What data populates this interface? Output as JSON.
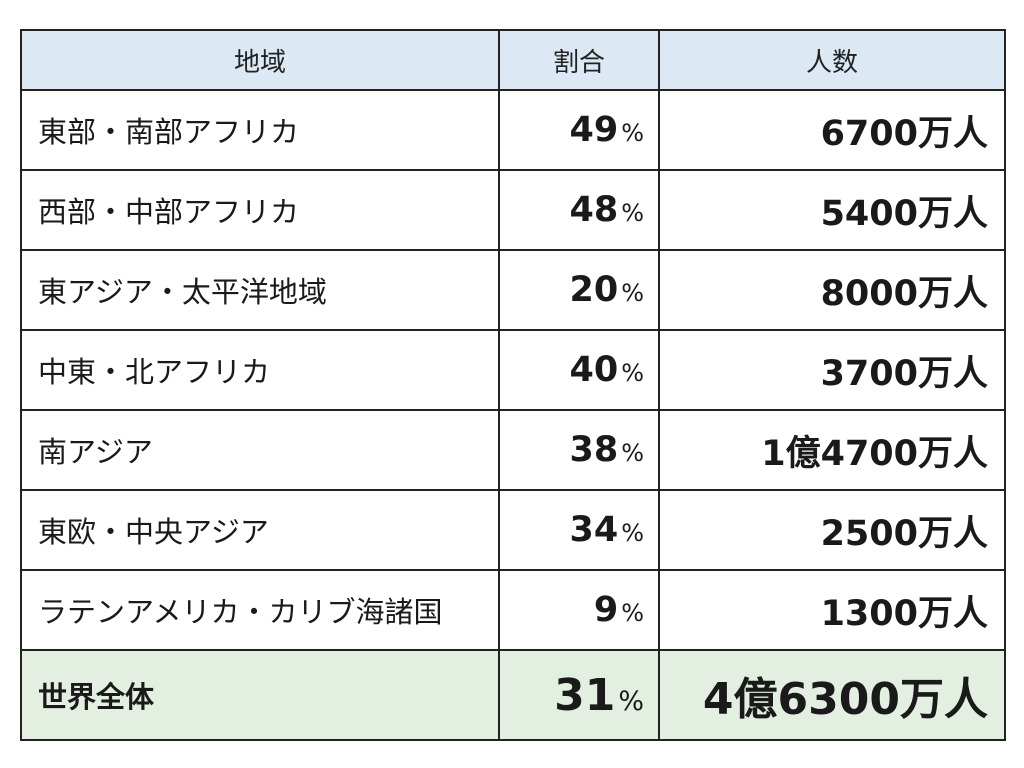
{
  "headers": [
    "地域",
    "割合",
    "人数"
  ],
  "pct_unit": "%",
  "rows": [
    {
      "region": "東部・南部アフリカ",
      "pct": "49",
      "count": "6700万人"
    },
    {
      "region": "西部・中部アフリカ",
      "pct": "48",
      "count": "5400万人"
    },
    {
      "region": "東アジア・太平洋地域",
      "pct": "20",
      "count": "8000万人"
    },
    {
      "region": "中東・北アフリカ",
      "pct": "40",
      "count": "3700万人"
    },
    {
      "region": "南アジア",
      "pct": "38",
      "count": "1億4700万人"
    },
    {
      "region": "東欧・中央アジア",
      "pct": "34",
      "count": "2500万人"
    },
    {
      "region": "ラテンアメリカ・カリブ海諸国",
      "pct": "9",
      "count": "1300万人"
    }
  ],
  "total": {
    "region": "世界全体",
    "pct": "31",
    "count": "4億6300万人"
  },
  "colors": {
    "header_bg": "#dce9f5",
    "total_bg": "#e3efe1",
    "border": "#222222"
  }
}
